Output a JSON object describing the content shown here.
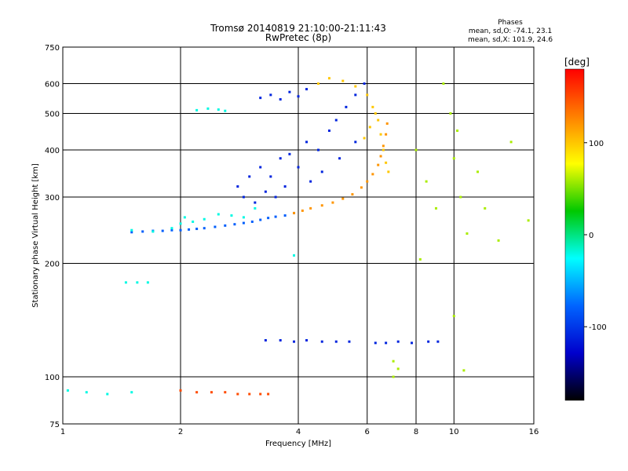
{
  "chart_data": {
    "type": "scatter",
    "title": "Tromsø 20140819 21:10:00-21:11:43",
    "subtitle": "RwPretec (8p)",
    "xlabel": "Frequency [MHz]",
    "ylabel": "Stationary phase Virtual Height [km]",
    "x_scale": "log",
    "y_scale": "log",
    "xlim": [
      1,
      16
    ],
    "ylim": [
      75,
      750
    ],
    "x_ticks": [
      1,
      2,
      4,
      6,
      8,
      10,
      16
    ],
    "y_ticks": [
      75,
      100,
      200,
      300,
      400,
      500,
      600,
      750
    ],
    "x_gridlines": [
      2,
      4,
      6,
      8,
      10
    ],
    "y_gridlines": [
      100,
      200,
      300,
      400,
      500,
      600
    ],
    "grid": true,
    "stats": {
      "title": "Phases",
      "line1": "mean, sd,O: -74.1, 23.1",
      "line2": "mean, sd,X: 101.9, 24.6"
    },
    "colorbar": {
      "label": "[deg]",
      "ticks": [
        100,
        0,
        -100
      ],
      "range": [
        -180,
        180
      ],
      "colors": [
        "#ff0000",
        "#ff8000",
        "#ffff00",
        "#00c800",
        "#00ffff",
        "#0064ff",
        "#0000cc",
        "#000000"
      ]
    },
    "series": [
      {
        "trace": "lower-O",
        "phase_deg": -80,
        "points": [
          [
            1.5,
            242
          ],
          [
            1.6,
            243
          ],
          [
            1.7,
            244
          ],
          [
            1.8,
            244
          ],
          [
            1.9,
            245
          ],
          [
            2.0,
            245
          ],
          [
            2.1,
            246
          ],
          [
            2.2,
            247
          ],
          [
            2.3,
            248
          ],
          [
            2.45,
            250
          ],
          [
            2.6,
            252
          ],
          [
            2.75,
            254
          ],
          [
            2.9,
            256
          ],
          [
            3.05,
            258
          ],
          [
            3.2,
            261
          ],
          [
            3.35,
            264
          ],
          [
            3.5,
            266
          ],
          [
            3.7,
            268
          ],
          [
            3.9,
            272
          ]
        ]
      },
      {
        "trace": "lower-O-cloud",
        "phase_deg": -20,
        "points": [
          [
            1.5,
            245
          ],
          [
            1.7,
            243
          ],
          [
            1.9,
            248
          ],
          [
            2.0,
            255
          ],
          [
            2.05,
            265
          ],
          [
            2.15,
            258
          ],
          [
            2.3,
            262
          ],
          [
            2.5,
            270
          ],
          [
            2.7,
            268
          ],
          [
            2.9,
            265
          ],
          [
            3.1,
            280
          ],
          [
            2.2,
            510
          ],
          [
            2.35,
            515
          ],
          [
            2.5,
            512
          ],
          [
            2.6,
            508
          ],
          [
            1.45,
            178
          ],
          [
            1.55,
            178
          ],
          [
            1.65,
            178
          ],
          [
            3.9,
            210
          ],
          [
            1.03,
            92
          ],
          [
            1.15,
            91
          ],
          [
            1.3,
            90
          ],
          [
            1.5,
            91
          ]
        ]
      },
      {
        "trace": "lower-X",
        "phase_deg": 120,
        "points": [
          [
            3.9,
            272
          ],
          [
            4.1,
            276
          ],
          [
            4.3,
            280
          ],
          [
            4.6,
            285
          ],
          [
            4.9,
            290
          ],
          [
            5.2,
            297
          ],
          [
            5.5,
            305
          ],
          [
            5.8,
            318
          ],
          [
            6.0,
            330
          ],
          [
            6.2,
            345
          ],
          [
            6.4,
            365
          ],
          [
            6.5,
            385
          ],
          [
            6.6,
            410
          ],
          [
            6.7,
            440
          ],
          [
            6.75,
            470
          ]
        ]
      },
      {
        "trace": "upper-cloud",
        "phase_deg": -110,
        "points": [
          [
            2.8,
            320
          ],
          [
            3.0,
            340
          ],
          [
            3.2,
            360
          ],
          [
            3.4,
            340
          ],
          [
            3.6,
            380
          ],
          [
            3.8,
            390
          ],
          [
            4.0,
            360
          ],
          [
            4.2,
            420
          ],
          [
            4.5,
            400
          ],
          [
            4.8,
            450
          ],
          [
            5.0,
            480
          ],
          [
            5.3,
            520
          ],
          [
            5.6,
            560
          ],
          [
            5.9,
            600
          ],
          [
            3.2,
            550
          ],
          [
            3.4,
            560
          ],
          [
            3.6,
            545
          ],
          [
            3.8,
            570
          ],
          [
            4.0,
            555
          ],
          [
            4.2,
            580
          ],
          [
            2.9,
            300
          ],
          [
            3.1,
            290
          ],
          [
            3.3,
            310
          ],
          [
            3.5,
            300
          ],
          [
            3.7,
            320
          ],
          [
            4.3,
            330
          ],
          [
            4.6,
            350
          ],
          [
            5.1,
            380
          ],
          [
            5.6,
            420
          ]
        ]
      },
      {
        "trace": "upper-X",
        "phase_deg": 100,
        "points": [
          [
            4.5,
            600
          ],
          [
            4.8,
            620
          ],
          [
            5.2,
            610
          ],
          [
            5.6,
            590
          ],
          [
            6.0,
            560
          ],
          [
            6.2,
            520
          ],
          [
            6.4,
            480
          ],
          [
            6.5,
            440
          ],
          [
            6.6,
            400
          ],
          [
            6.7,
            370
          ],
          [
            6.8,
            350
          ],
          [
            5.9,
            430
          ],
          [
            6.1,
            460
          ],
          [
            6.3,
            500
          ]
        ]
      },
      {
        "trace": "low-band",
        "phase_deg": 150,
        "points": [
          [
            2.0,
            92
          ],
          [
            2.2,
            91
          ],
          [
            2.4,
            91
          ],
          [
            2.6,
            91
          ],
          [
            2.8,
            90
          ],
          [
            3.0,
            90
          ],
          [
            3.2,
            90
          ],
          [
            3.35,
            90
          ]
        ]
      },
      {
        "trace": "sporadic-125",
        "phase_deg": -110,
        "points": [
          [
            3.3,
            125
          ],
          [
            3.6,
            125
          ],
          [
            3.9,
            124
          ],
          [
            4.2,
            125
          ],
          [
            4.6,
            124
          ],
          [
            5.0,
            124
          ],
          [
            5.4,
            124
          ],
          [
            6.3,
            123
          ],
          [
            6.7,
            123
          ],
          [
            7.2,
            124
          ],
          [
            7.8,
            123
          ],
          [
            8.6,
            124
          ],
          [
            9.1,
            124
          ]
        ]
      },
      {
        "trace": "scattered",
        "phase_deg": 60,
        "points": [
          [
            7.0,
            110
          ],
          [
            7.2,
            105
          ],
          [
            8.0,
            400
          ],
          [
            8.5,
            330
          ],
          [
            9.0,
            280
          ],
          [
            9.4,
            600
          ],
          [
            9.8,
            500
          ],
          [
            10.0,
            380
          ],
          [
            10.2,
            450
          ],
          [
            10.4,
            300
          ],
          [
            10.8,
            240
          ],
          [
            11.5,
            350
          ],
          [
            12.0,
            280
          ],
          [
            13.0,
            230
          ],
          [
            14.0,
            420
          ],
          [
            15.5,
            260
          ],
          [
            8.2,
            205
          ],
          [
            10.0,
            145
          ],
          [
            10.6,
            104
          ],
          [
            7.0,
            100
          ]
        ]
      }
    ]
  }
}
